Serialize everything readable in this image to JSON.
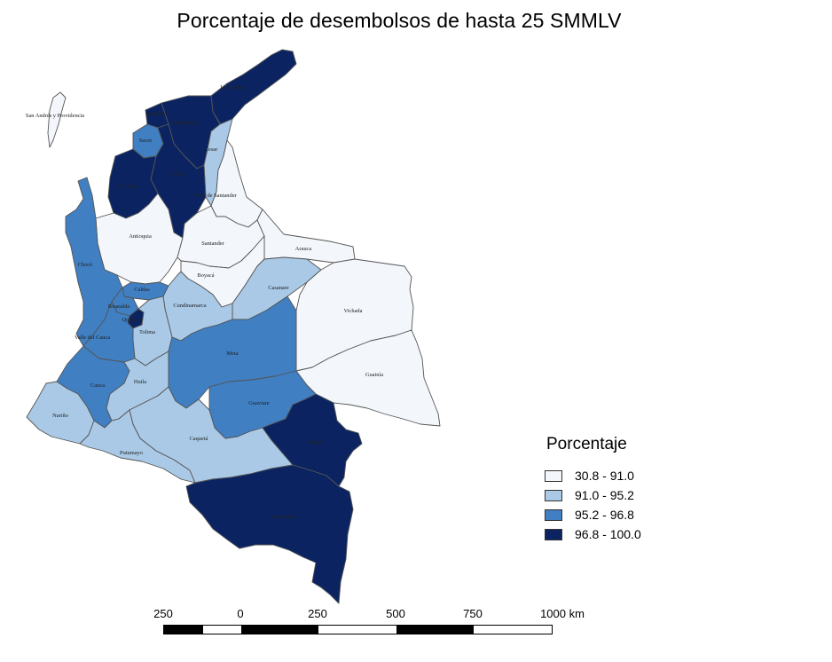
{
  "title": "Porcentaje de desembolsos de hasta 25 SMMLV",
  "colors": {
    "class1": "#f3f7fc",
    "class2": "#a9c9e6",
    "class3": "#3f7fc2",
    "class4": "#0b2461"
  },
  "legend": {
    "title": "Porcentaje",
    "items": [
      {
        "label": "30.8 - 91.0",
        "color": "#f3f7fc"
      },
      {
        "label": "91.0 - 95.2",
        "color": "#a9c9e6"
      },
      {
        "label": "95.2 - 96.8",
        "color": "#3f7fc2"
      },
      {
        "label": "96.8 - 100.0",
        "color": "#0b2461"
      }
    ]
  },
  "scale": {
    "labels": [
      "250",
      "0",
      "250",
      "500",
      "750",
      "1000 km"
    ]
  },
  "departments": {
    "guajira": {
      "label": "La Guajira",
      "class": 4
    },
    "magdalena": {
      "label": "Magdalena",
      "class": 4
    },
    "atlantico": {
      "label": "Atlántico",
      "class": 4
    },
    "cesar": {
      "label": "Cesar",
      "class": 2
    },
    "bolivar": {
      "label": "Bolívar",
      "class": 4
    },
    "sucre": {
      "label": "Sucre",
      "class": 3
    },
    "cordoba": {
      "label": "Córdoba",
      "class": 4
    },
    "norte_santander": {
      "label": "Norte de Santander",
      "class": 1
    },
    "antioquia": {
      "label": "Antioquia",
      "class": 1
    },
    "santander": {
      "label": "Santander",
      "class": 1
    },
    "arauca": {
      "label": "Arauca",
      "class": 1
    },
    "boyaca": {
      "label": "Boyacá",
      "class": 1
    },
    "casanare": {
      "label": "Casanare",
      "class": 2
    },
    "vichada": {
      "label": "Vichada",
      "class": 1
    },
    "choco": {
      "label": "Chocó",
      "class": 3
    },
    "caldas": {
      "label": "Caldas",
      "class": 3
    },
    "risaralda": {
      "label": "Risaralda",
      "class": 3
    },
    "quindio": {
      "label": "Quindío",
      "class": 4
    },
    "cundinamarca": {
      "label": "Cundinamarca",
      "class": 2
    },
    "tolima": {
      "label": "Tolima",
      "class": 2
    },
    "valle": {
      "label": "Valle del Cauca",
      "class": 3
    },
    "meta": {
      "label": "Meta",
      "class": 3
    },
    "guainia": {
      "label": "Guainía",
      "class": 1
    },
    "cauca": {
      "label": "Cauca",
      "class": 3
    },
    "huila": {
      "label": "Huila",
      "class": 2
    },
    "guaviare": {
      "label": "Guaviare",
      "class": 3
    },
    "narino": {
      "label": "Nariño",
      "class": 2
    },
    "putumayo": {
      "label": "Putumayo",
      "class": 2
    },
    "caqueta": {
      "label": "Caquetá",
      "class": 2
    },
    "vaupes": {
      "label": "Vaupés",
      "class": 4
    },
    "amazonas": {
      "label": "Amazonas",
      "class": 4
    },
    "san_andres": {
      "label": "San Andrés y Providencia",
      "class": 1
    }
  }
}
